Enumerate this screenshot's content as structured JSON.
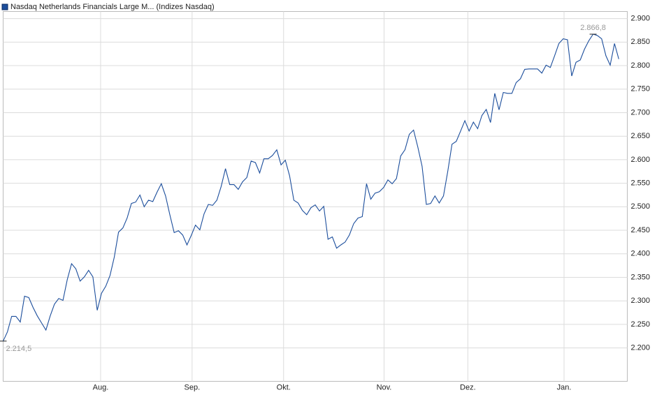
{
  "chart_data": {
    "type": "line",
    "series": [
      {
        "name": "Nasdaq Netherlands Financials Large M... (Indizes Nasdaq)",
        "color": "#1c4e9c",
        "values": [
          2214.5,
          2234,
          2267,
          2267,
          2255,
          2310,
          2307,
          2286,
          2268,
          2253,
          2238,
          2268,
          2293,
          2305,
          2301,
          2345,
          2379,
          2368,
          2342,
          2351,
          2365,
          2351,
          2280,
          2316,
          2331,
          2354,
          2393,
          2446,
          2455,
          2476,
          2507,
          2510,
          2525,
          2500,
          2514,
          2511,
          2531,
          2549,
          2523,
          2483,
          2445,
          2449,
          2440,
          2419,
          2439,
          2461,
          2451,
          2485,
          2505,
          2503,
          2514,
          2543,
          2581,
          2547,
          2547,
          2537,
          2553,
          2562,
          2597,
          2594,
          2572,
          2602,
          2602,
          2609,
          2621,
          2589,
          2599,
          2566,
          2514,
          2508,
          2492,
          2483,
          2498,
          2504,
          2491,
          2501,
          2431,
          2436,
          2412,
          2419,
          2425,
          2440,
          2464,
          2476,
          2479,
          2549,
          2516,
          2529,
          2532,
          2541,
          2557,
          2549,
          2560,
          2608,
          2621,
          2654,
          2663,
          2627,
          2586,
          2505,
          2507,
          2523,
          2508,
          2523,
          2575,
          2633,
          2639,
          2661,
          2683,
          2661,
          2680,
          2666,
          2694,
          2707,
          2679,
          2741,
          2706,
          2743,
          2741,
          2741,
          2764,
          2772,
          2792,
          2793,
          2793,
          2793,
          2784,
          2801,
          2796,
          2821,
          2847,
          2857,
          2855,
          2778,
          2807,
          2812,
          2835,
          2853,
          2866.8,
          2864,
          2857,
          2821,
          2801,
          2847,
          2814
        ]
      }
    ],
    "annotations": [
      {
        "value": 2214.5,
        "label": "2.214,5"
      },
      {
        "value": 2866.8,
        "label": "2.866,8"
      }
    ],
    "xlim": [
      0,
      146
    ],
    "xticks": [
      {
        "value": 22.8,
        "label": "Aug."
      },
      {
        "value": 44.2,
        "label": "Sep."
      },
      {
        "value": 65.6,
        "label": "Okt."
      },
      {
        "value": 89.1,
        "label": "Nov."
      },
      {
        "value": 108.7,
        "label": "Dez."
      },
      {
        "value": 131.2,
        "label": "Jan."
      }
    ],
    "ylim": [
      2129,
      2915
    ],
    "yticks": [
      {
        "value": 2200,
        "label": "2.200"
      },
      {
        "value": 2250,
        "label": "2.250"
      },
      {
        "value": 2300,
        "label": "2.300"
      },
      {
        "value": 2350,
        "label": "2.350"
      },
      {
        "value": 2400,
        "label": "2.400"
      },
      {
        "value": 2450,
        "label": "2.450"
      },
      {
        "value": 2500,
        "label": "2.500"
      },
      {
        "value": 2550,
        "label": "2.550"
      },
      {
        "value": 2600,
        "label": "2.600"
      },
      {
        "value": 2650,
        "label": "2.650"
      },
      {
        "value": 2700,
        "label": "2.700"
      },
      {
        "value": 2750,
        "label": "2.750"
      },
      {
        "value": 2800,
        "label": "2.800"
      },
      {
        "value": 2850,
        "label": "2.850"
      },
      {
        "value": 2900,
        "label": "2.900"
      }
    ],
    "grid": true
  }
}
